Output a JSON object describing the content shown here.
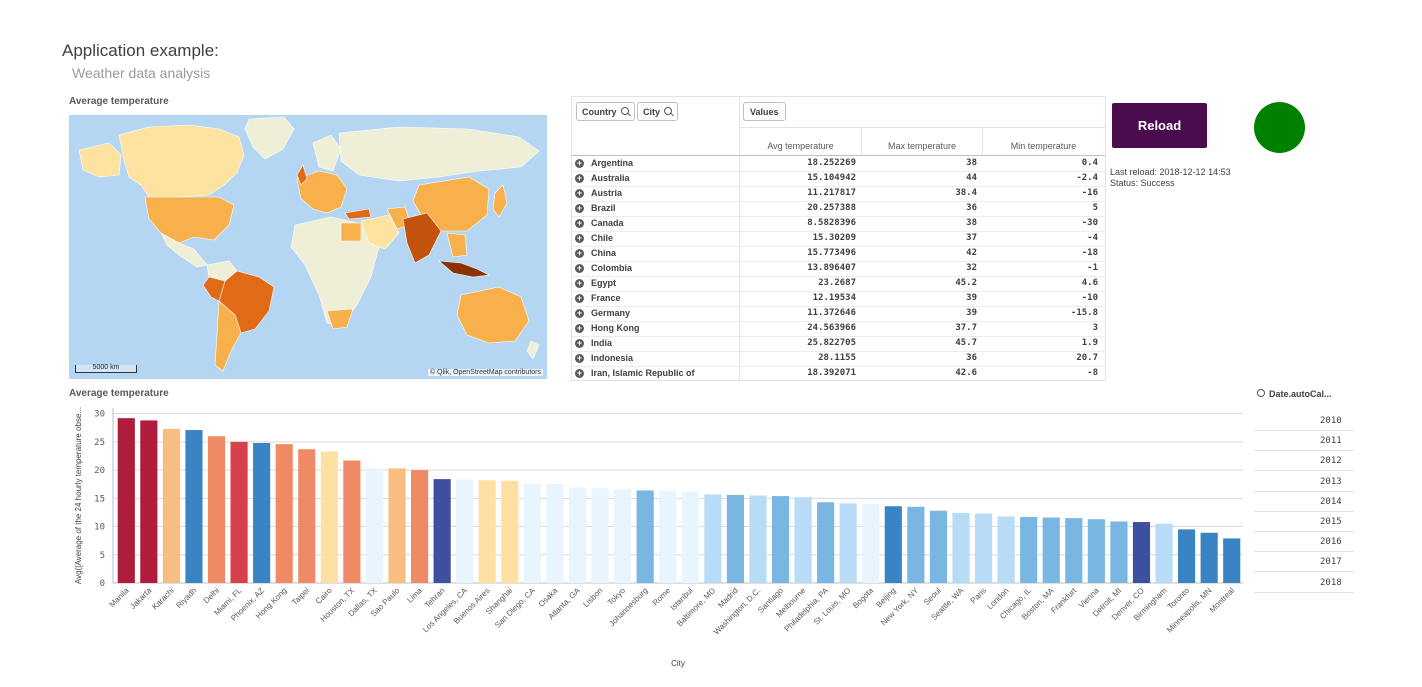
{
  "app": {
    "title": "Application example:",
    "subtitle": "Weather data analysis"
  },
  "map": {
    "title": "Average temperature",
    "scale": "5000 km",
    "attribution": "© Qlik, OpenStreetMap contributors",
    "colors": {
      "ocean": "#b5d6f2",
      "land": "#efeed6",
      "light": "#fde2a0",
      "mid": "#f8b04c",
      "dark": "#e06a15",
      "darkest": "#8a3200"
    }
  },
  "table": {
    "dim_country": "Country",
    "dim_city": "City",
    "values_btn": "Values",
    "columns": [
      "Avg temperature",
      "Max temperature",
      "Min temperature"
    ],
    "rows": [
      {
        "country": "Argentina",
        "avg": "18.252269",
        "max": "38",
        "min": "0.4"
      },
      {
        "country": "Australia",
        "avg": "15.104942",
        "max": "44",
        "min": "-2.4"
      },
      {
        "country": "Austria",
        "avg": "11.217817",
        "max": "38.4",
        "min": "-16"
      },
      {
        "country": "Brazil",
        "avg": "20.257388",
        "max": "36",
        "min": "5"
      },
      {
        "country": "Canada",
        "avg": "8.5828396",
        "max": "38",
        "min": "-30"
      },
      {
        "country": "Chile",
        "avg": "15.30209",
        "max": "37",
        "min": "-4"
      },
      {
        "country": "China",
        "avg": "15.773496",
        "max": "42",
        "min": "-18"
      },
      {
        "country": "Colombia",
        "avg": "13.896407",
        "max": "32",
        "min": "-1"
      },
      {
        "country": "Egypt",
        "avg": "23.2687",
        "max": "45.2",
        "min": "4.6"
      },
      {
        "country": "France",
        "avg": "12.19534",
        "max": "39",
        "min": "-10"
      },
      {
        "country": "Germany",
        "avg": "11.372646",
        "max": "39",
        "min": "-15.8"
      },
      {
        "country": "Hong Kong",
        "avg": "24.563966",
        "max": "37.7",
        "min": "3"
      },
      {
        "country": "India",
        "avg": "25.822705",
        "max": "45.7",
        "min": "1.9"
      },
      {
        "country": "Indonesia",
        "avg": "28.1155",
        "max": "36",
        "min": "20.7"
      },
      {
        "country": "Iran, Islamic Republic of",
        "avg": "18.392071",
        "max": "42.6",
        "min": "-8"
      }
    ]
  },
  "reload": {
    "label": "Reload",
    "last_reload": "Last reload: 2018-12-12 14:53",
    "status": "Status: Success",
    "status_color": "#008000",
    "button_color": "#4b0b4f"
  },
  "filter": {
    "title": "Date.autoCal...",
    "years": [
      "2010",
      "2011",
      "2012",
      "2013",
      "2014",
      "2015",
      "2016",
      "2017",
      "2018"
    ]
  },
  "chart_data": {
    "type": "bar",
    "title": "Average temperature",
    "xlabel": "City",
    "ylabel": "Avg([Average of the 24 hourly temperature obse...",
    "ylim": [
      0,
      31
    ],
    "yticks": [
      0,
      5,
      10,
      15,
      20,
      25,
      30
    ],
    "grid": true,
    "categories": [
      "Manila",
      "Jakarta",
      "Karachi",
      "Riyadh",
      "Delhi",
      "Miami, FL",
      "Phoenix, AZ",
      "Hong Kong",
      "Taipei",
      "Cairo",
      "Houston, TX",
      "Dallas, TX",
      "Sao Paulo",
      "Lima",
      "Tehran",
      "Los Angeles, CA",
      "Buenos Aires",
      "Shanghai",
      "San Diego, CA",
      "Osaka",
      "Atlanta, GA",
      "Lisbon",
      "Tokyo",
      "Johannesburg",
      "Rome",
      "Istanbul",
      "Baltimore, MD",
      "Madrid",
      "Washington, D.C.",
      "Santiago",
      "Melbourne",
      "Philadelphia, PA",
      "St. Louis, MO",
      "Bogota",
      "Beijing",
      "New York, NY",
      "Seoul",
      "Seattle, WA",
      "Paris",
      "London",
      "Chicago, IL",
      "Boston, MA",
      "Frankfurt",
      "Vienna",
      "Detroit, MI",
      "Denver, CO",
      "Birmingham",
      "Toronto",
      "Minneapolis, MN",
      "Montreal"
    ],
    "values": [
      29.2,
      28.8,
      27.3,
      27.1,
      26.0,
      25.0,
      24.8,
      24.6,
      23.7,
      23.3,
      21.7,
      20.3,
      20.3,
      20.0,
      18.4,
      18.3,
      18.2,
      18.1,
      17.6,
      17.5,
      16.9,
      16.8,
      16.6,
      16.4,
      16.3,
      16.2,
      15.7,
      15.6,
      15.5,
      15.4,
      15.2,
      14.3,
      14.1,
      14.0,
      13.6,
      13.5,
      12.8,
      12.4,
      12.3,
      11.8,
      11.7,
      11.6,
      11.5,
      11.3,
      10.9,
      10.8,
      10.5,
      9.5,
      8.9,
      7.9
    ],
    "colors": [
      "#b01c3c",
      "#b01c3c",
      "#f8bd80",
      "#3b84c4",
      "#ef8b64",
      "#d6414c",
      "#3b84c4",
      "#ef8b64",
      "#ef8b64",
      "#fee0a4",
      "#ef8b64",
      "#e8f4fe",
      "#f8bd80",
      "#ef8b64",
      "#3d4f9f",
      "#e8f4fe",
      "#fee0a4",
      "#fee0a4",
      "#e8f4fe",
      "#e8f4fe",
      "#e8f4fe",
      "#e8f4fe",
      "#e8f4fe",
      "#7ab6e2",
      "#e8f4fe",
      "#e8f4fe",
      "#b8dcf5",
      "#7ab6e2",
      "#b8dcf5",
      "#7ab6e2",
      "#b8dcf5",
      "#7ab6e2",
      "#b8dcf5",
      "#e8f4fe",
      "#3b84c4",
      "#7ab6e2",
      "#7ab6e2",
      "#b8dcf5",
      "#b8dcf5",
      "#b8dcf5",
      "#7ab6e2",
      "#7ab6e2",
      "#7ab6e2",
      "#7ab6e2",
      "#7ab6e2",
      "#3d4f9f",
      "#b8dcf5",
      "#3b84c4",
      "#3b84c4",
      "#3b84c4"
    ]
  }
}
